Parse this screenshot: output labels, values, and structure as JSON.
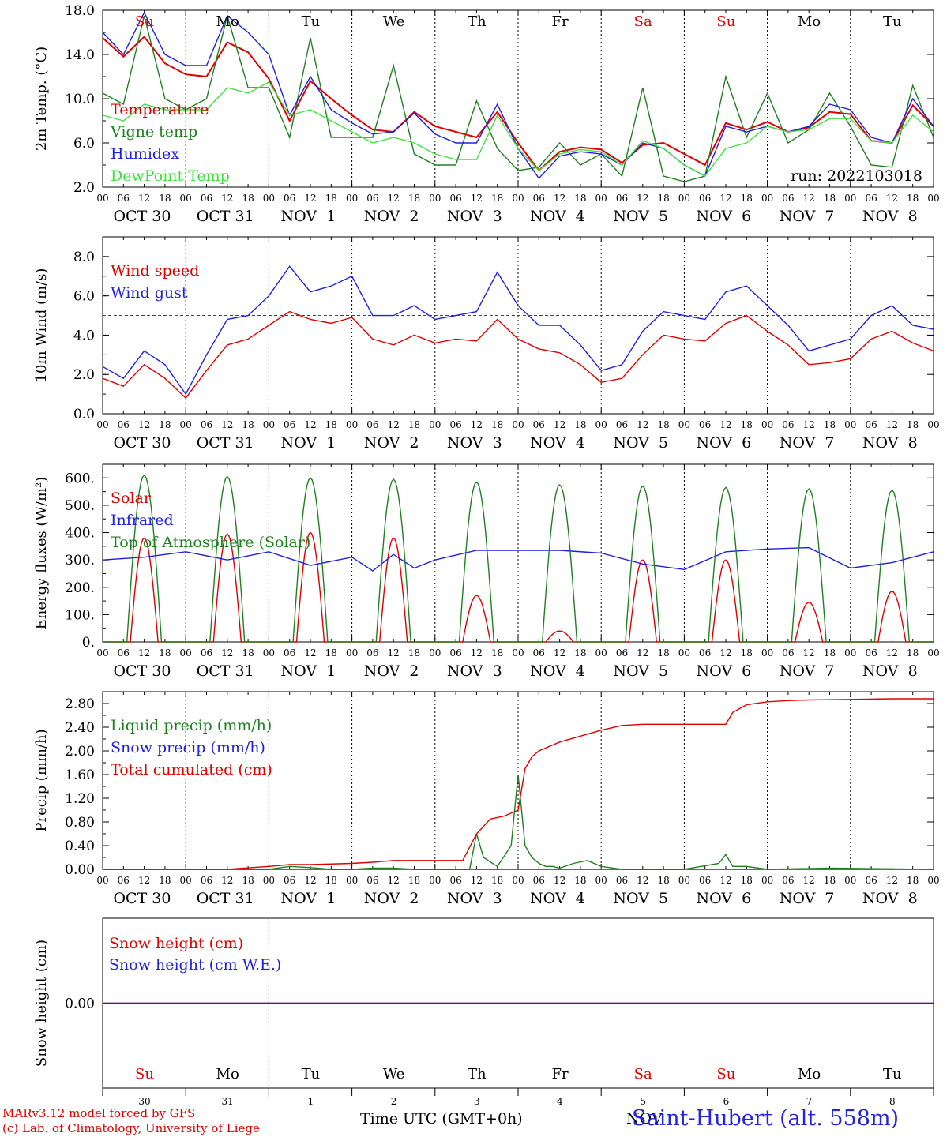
{
  "run_label": "run: 2022103018",
  "days_abbrev": [
    "Su",
    "Mo",
    "Tu",
    "We",
    "Th",
    "Fr",
    "Sa",
    "Su",
    "Mo",
    "Tu"
  ],
  "days_abbrev_colors": [
    "#e00000",
    "#000000",
    "#000000",
    "#000000",
    "#000000",
    "#000000",
    "#e00000",
    "#e00000",
    "#000000",
    "#000000"
  ],
  "day_numbers": [
    "30",
    "31",
    "1",
    "2",
    "3",
    "4",
    "5",
    "6",
    "7",
    "8"
  ],
  "date_labels": [
    "OCT 30",
    "OCT 31",
    "NOV  1",
    "NOV  2",
    "NOV  3",
    "NOV  4",
    "NOV  5",
    "NOV  6",
    "NOV  7",
    "NOV  8"
  ],
  "hour_ticks": [
    "00",
    "06",
    "12",
    "18"
  ],
  "hour_end": "00",
  "footer": {
    "credit1": "MARv3.12 model forced by GFS",
    "credit2": "(c) Lab. of Climatology, University of Liege",
    "xaxis": "Time UTC (GMT+0h)",
    "overlap": "NOV",
    "station": "Saint-Hubert (alt. 558m)"
  },
  "chart_data": [
    {
      "type": "line",
      "ylabel": "2m Temp. (°C)",
      "ylim": [
        2.0,
        18.0
      ],
      "yticks": [
        "2.0",
        "6.0",
        "10.0",
        "14.0",
        "18.0"
      ],
      "x_unit": "hours since OCT 30 00 UTC",
      "series": [
        {
          "name": "Temperature",
          "color": "#e00000",
          "x": [
            0,
            6,
            12,
            18,
            24,
            30,
            36,
            42,
            48,
            54,
            60,
            66,
            72,
            78,
            84,
            90,
            96,
            102,
            108,
            114,
            120,
            126,
            132,
            138,
            144,
            150,
            156,
            162,
            168,
            174,
            180,
            186,
            192,
            198,
            204,
            210,
            216,
            222,
            228,
            234,
            240
          ],
          "y": [
            15.5,
            13.8,
            15.6,
            13.2,
            12.2,
            12.0,
            15.1,
            14.2,
            11.8,
            8.0,
            11.6,
            10.0,
            8.5,
            7.2,
            7.0,
            8.8,
            7.5,
            7.0,
            6.5,
            8.8,
            6.0,
            3.5,
            5.2,
            5.6,
            5.4,
            4.2,
            5.8,
            6.0,
            5.0,
            4.0,
            7.8,
            7.2,
            7.9,
            7.0,
            7.4,
            8.8,
            8.6,
            6.2,
            6.0,
            9.4,
            7.5
          ]
        },
        {
          "name": "Vigne temp",
          "color": "#208020",
          "x": [
            0,
            6,
            12,
            18,
            24,
            30,
            36,
            42,
            48,
            54,
            60,
            66,
            72,
            78,
            84,
            90,
            96,
            102,
            108,
            114,
            120,
            126,
            132,
            138,
            144,
            150,
            156,
            162,
            168,
            174,
            180,
            186,
            192,
            198,
            204,
            210,
            216,
            222,
            228,
            234,
            240
          ],
          "y": [
            10.5,
            9.5,
            17.5,
            10.0,
            9.0,
            10.0,
            17.5,
            11.0,
            11.0,
            6.5,
            15.5,
            6.5,
            6.5,
            6.5,
            13.0,
            5.0,
            4.0,
            4.0,
            9.8,
            5.5,
            3.5,
            3.8,
            6.0,
            4.0,
            5.0,
            3.0,
            11.0,
            3.0,
            2.5,
            3.0,
            12.0,
            6.5,
            10.5,
            6.0,
            7.2,
            10.5,
            7.5,
            4.0,
            3.8,
            11.2,
            6.5
          ]
        },
        {
          "name": "Humidex",
          "color": "#2020e0",
          "x": [
            0,
            6,
            12,
            18,
            24,
            30,
            36,
            42,
            48,
            54,
            60,
            66,
            72,
            78,
            84,
            90,
            96,
            102,
            108,
            114,
            120,
            126,
            132,
            138,
            144,
            150,
            156,
            162,
            168,
            174,
            180,
            186,
            192,
            198,
            204,
            210,
            216,
            222,
            228,
            234,
            240
          ],
          "y": [
            16.0,
            14.0,
            17.8,
            14.0,
            13.0,
            13.0,
            17.5,
            16.0,
            14.0,
            8.5,
            12.0,
            9.0,
            7.8,
            6.8,
            7.0,
            8.7,
            6.8,
            6.0,
            6.0,
            9.5,
            5.5,
            2.8,
            4.8,
            5.2,
            5.0,
            4.0,
            6.0,
            5.5,
            4.0,
            3.0,
            7.5,
            7.0,
            7.5,
            7.0,
            7.5,
            9.5,
            9.0,
            6.5,
            6.0,
            10.0,
            7.5
          ]
        },
        {
          "name": "DewPoint Temp",
          "color": "#40e040",
          "x": [
            0,
            6,
            12,
            18,
            24,
            30,
            36,
            42,
            48,
            54,
            60,
            66,
            72,
            78,
            84,
            90,
            96,
            102,
            108,
            114,
            120,
            126,
            132,
            138,
            144,
            150,
            156,
            162,
            168,
            174,
            180,
            186,
            192,
            198,
            204,
            210,
            216,
            222,
            228,
            234,
            240
          ],
          "y": [
            8.5,
            8.0,
            9.5,
            9.0,
            9.0,
            9.0,
            11.0,
            10.5,
            11.5,
            8.5,
            9.0,
            8.0,
            7.0,
            6.0,
            6.5,
            6.0,
            5.0,
            4.5,
            4.5,
            8.5,
            5.5,
            3.5,
            5.0,
            5.4,
            5.2,
            4.0,
            6.2,
            5.5,
            4.0,
            3.0,
            5.5,
            6.0,
            7.5,
            7.0,
            7.2,
            8.2,
            8.2,
            6.2,
            6.0,
            8.5,
            7.0
          ]
        }
      ]
    },
    {
      "type": "line",
      "ylabel": "10m Wind (m/s)",
      "ylim": [
        0.0,
        9.0
      ],
      "yticks": [
        "0.0",
        "2.0",
        "4.0",
        "6.0",
        "8.0"
      ],
      "reference_line": 5.0,
      "series": [
        {
          "name": "Wind speed",
          "color": "#e00000",
          "x": [
            0,
            6,
            12,
            18,
            24,
            30,
            36,
            42,
            48,
            54,
            60,
            66,
            72,
            78,
            84,
            90,
            96,
            102,
            108,
            114,
            120,
            126,
            132,
            138,
            144,
            150,
            156,
            162,
            168,
            174,
            180,
            186,
            192,
            198,
            204,
            210,
            216,
            222,
            228,
            234,
            240
          ],
          "y": [
            1.8,
            1.4,
            2.5,
            1.8,
            0.8,
            2.2,
            3.5,
            3.8,
            4.5,
            5.2,
            4.8,
            4.6,
            4.9,
            3.8,
            3.5,
            4.0,
            3.6,
            3.8,
            3.7,
            4.8,
            3.8,
            3.3,
            3.1,
            2.5,
            1.6,
            1.8,
            3.0,
            4.0,
            3.8,
            3.7,
            4.6,
            5.0,
            4.2,
            3.5,
            2.5,
            2.6,
            2.8,
            3.8,
            4.2,
            3.6,
            3.2
          ]
        },
        {
          "name": "Wind gust",
          "color": "#2020e0",
          "x": [
            0,
            6,
            12,
            18,
            24,
            30,
            36,
            42,
            48,
            54,
            60,
            66,
            72,
            78,
            84,
            90,
            96,
            102,
            108,
            114,
            120,
            126,
            132,
            138,
            144,
            150,
            156,
            162,
            168,
            174,
            180,
            186,
            192,
            198,
            204,
            210,
            216,
            222,
            228,
            234,
            240
          ],
          "y": [
            2.4,
            1.8,
            3.2,
            2.5,
            1.0,
            3.0,
            4.8,
            5.0,
            6.0,
            7.5,
            6.2,
            6.5,
            7.0,
            5.0,
            5.0,
            5.5,
            4.8,
            5.0,
            5.2,
            7.2,
            5.5,
            4.5,
            4.5,
            3.5,
            2.2,
            2.5,
            4.2,
            5.2,
            5.0,
            4.8,
            6.2,
            6.5,
            5.5,
            4.5,
            3.2,
            3.5,
            3.8,
            5.0,
            5.5,
            4.5,
            4.3
          ]
        }
      ]
    },
    {
      "type": "line",
      "ylabel": "Energy fluxes (W/m²)",
      "ylim": [
        0.0,
        650.0
      ],
      "yticks": [
        "0.",
        "100.",
        "200.",
        "300.",
        "400.",
        "500.",
        "600."
      ],
      "series": [
        {
          "name": "Solar",
          "color": "#e00000",
          "daily_peak": [
            380,
            395,
            400,
            380,
            170,
            40,
            300,
            300,
            145,
            185
          ]
        },
        {
          "name": "Infrared",
          "color": "#2020e0",
          "x": [
            0,
            12,
            24,
            36,
            48,
            60,
            72,
            78,
            84,
            90,
            96,
            108,
            120,
            132,
            144,
            156,
            168,
            180,
            192,
            204,
            216,
            228,
            240
          ],
          "y": [
            300,
            310,
            330,
            300,
            330,
            280,
            310,
            260,
            320,
            270,
            300,
            335,
            335,
            335,
            325,
            285,
            265,
            330,
            340,
            345,
            270,
            290,
            330
          ]
        },
        {
          "name": "Top of Atmosphere (Solar)",
          "color": "#208020",
          "daily_peak": [
            610,
            605,
            600,
            595,
            585,
            575,
            570,
            565,
            560,
            555
          ]
        }
      ]
    },
    {
      "type": "line",
      "ylabel": "Precip (mm/h)",
      "ylim": [
        0.0,
        3.0
      ],
      "yticks": [
        "0.00",
        "0.40",
        "0.80",
        "1.20",
        "1.60",
        "2.00",
        "2.40",
        "2.80"
      ],
      "series": [
        {
          "name": "Liquid precip (mm/h)",
          "color": "#208020",
          "x": [
            0,
            36,
            48,
            54,
            60,
            66,
            72,
            78,
            84,
            90,
            96,
            106,
            108,
            110,
            114,
            118,
            120,
            122,
            124,
            126,
            128,
            130,
            132,
            136,
            140,
            144,
            150,
            156,
            168,
            178,
            180,
            182,
            186,
            192,
            210,
            240
          ],
          "y": [
            0,
            0,
            0,
            0.05,
            0.03,
            0,
            0,
            0.02,
            0.02,
            0,
            0,
            0,
            0.6,
            0.2,
            0.05,
            0.4,
            1.6,
            0.4,
            0.2,
            0.1,
            0.05,
            0.05,
            0.02,
            0.1,
            0.15,
            0.05,
            0,
            0,
            0,
            0.1,
            0.25,
            0.05,
            0.05,
            0,
            0.02,
            0
          ]
        },
        {
          "name": "Snow precip (mm/h)",
          "color": "#2020e0",
          "x": [
            0,
            240
          ],
          "y": [
            0,
            0
          ]
        },
        {
          "name": "Total cumulated (cm)",
          "color": "#e00000",
          "x": [
            0,
            36,
            48,
            54,
            60,
            72,
            78,
            84,
            96,
            104,
            108,
            112,
            116,
            120,
            122,
            124,
            126,
            132,
            138,
            144,
            150,
            156,
            162,
            168,
            174,
            180,
            182,
            186,
            192,
            198,
            204,
            216,
            228,
            240
          ],
          "y": [
            0,
            0,
            0.05,
            0.08,
            0.08,
            0.1,
            0.12,
            0.15,
            0.15,
            0.15,
            0.6,
            0.85,
            0.9,
            1.0,
            1.7,
            1.9,
            2.0,
            2.15,
            2.25,
            2.35,
            2.43,
            2.45,
            2.45,
            2.45,
            2.45,
            2.45,
            2.65,
            2.78,
            2.83,
            2.85,
            2.86,
            2.87,
            2.88,
            2.88
          ]
        }
      ]
    },
    {
      "type": "line",
      "ylabel": "Snow height (cm)",
      "ylim": [
        -1.0,
        1.0
      ],
      "yticks": [
        "0.00"
      ],
      "series": [
        {
          "name": "Snow height (cm)",
          "color": "#e00000",
          "x": [
            0,
            240
          ],
          "y": [
            0,
            0
          ]
        },
        {
          "name": "Snow height (cm W.E.)",
          "color": "#2020e0",
          "x": [
            0,
            240
          ],
          "y": [
            0,
            0
          ]
        }
      ]
    }
  ]
}
